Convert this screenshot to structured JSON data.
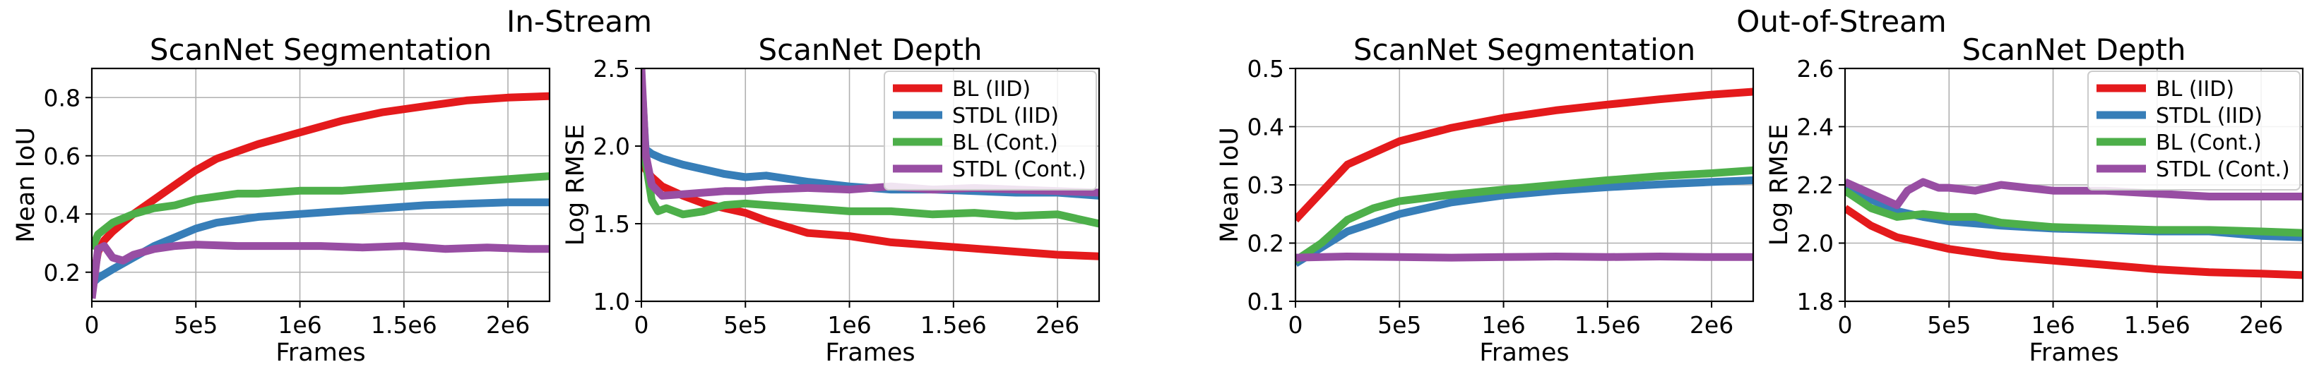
{
  "figure": {
    "group_titles": [
      "In-Stream",
      "Out-of-Stream"
    ]
  },
  "colors": {
    "BL (IID)": "#e41a1c",
    "STDL (IID)": "#377eb8",
    "BL (Cont.)": "#4daf4a",
    "STDL (Cont.)": "#984ea3"
  },
  "chart_data": [
    {
      "type": "line",
      "group": "In-Stream",
      "title": "ScanNet Segmentation",
      "xlabel": "Frames",
      "ylabel": "Mean IoU",
      "xlim": [
        0,
        2200000
      ],
      "ylim": [
        0.1,
        0.9
      ],
      "xticks": [
        0,
        500000,
        1000000,
        1500000,
        2000000
      ],
      "xtick_labels": [
        "0",
        "5e5",
        "1e6",
        "1.5e6",
        "2e6"
      ],
      "yticks": [
        0.2,
        0.4,
        0.6,
        0.8
      ],
      "ytick_labels": [
        "0.2",
        "0.4",
        "0.6",
        "0.8"
      ],
      "grid": true,
      "legend": null,
      "series": [
        {
          "name": "BL (IID)",
          "x": [
            0,
            30000,
            60000,
            100000,
            150000,
            200000,
            300000,
            400000,
            500000,
            600000,
            800000,
            1000000,
            1200000,
            1400000,
            1600000,
            1800000,
            2000000,
            2200000
          ],
          "y": [
            0.15,
            0.27,
            0.31,
            0.34,
            0.37,
            0.4,
            0.45,
            0.5,
            0.55,
            0.59,
            0.64,
            0.68,
            0.72,
            0.75,
            0.77,
            0.79,
            0.8,
            0.805
          ]
        },
        {
          "name": "STDL (IID)",
          "x": [
            0,
            30000,
            100000,
            200000,
            300000,
            400000,
            500000,
            600000,
            700000,
            800000,
            1000000,
            1200000,
            1400000,
            1600000,
            1800000,
            2000000,
            2200000
          ],
          "y": [
            0.16,
            0.18,
            0.21,
            0.25,
            0.29,
            0.32,
            0.35,
            0.37,
            0.38,
            0.39,
            0.4,
            0.41,
            0.42,
            0.43,
            0.435,
            0.44,
            0.44
          ]
        },
        {
          "name": "BL (Cont.)",
          "x": [
            0,
            30000,
            100000,
            200000,
            300000,
            400000,
            500000,
            600000,
            700000,
            800000,
            1000000,
            1200000,
            1400000,
            1600000,
            1800000,
            2000000,
            2200000
          ],
          "y": [
            0.28,
            0.33,
            0.37,
            0.4,
            0.42,
            0.43,
            0.45,
            0.46,
            0.47,
            0.47,
            0.48,
            0.48,
            0.49,
            0.5,
            0.51,
            0.52,
            0.53
          ]
        },
        {
          "name": "STDL (Cont.)",
          "x": [
            0,
            30000,
            60000,
            100000,
            150000,
            200000,
            300000,
            400000,
            500000,
            700000,
            900000,
            1100000,
            1300000,
            1500000,
            1700000,
            1900000,
            2100000,
            2200000
          ],
          "y": [
            0.11,
            0.28,
            0.29,
            0.25,
            0.24,
            0.26,
            0.28,
            0.29,
            0.295,
            0.29,
            0.29,
            0.29,
            0.285,
            0.29,
            0.28,
            0.285,
            0.28,
            0.28
          ]
        }
      ]
    },
    {
      "type": "line",
      "group": "In-Stream",
      "title": "ScanNet Depth",
      "xlabel": "Frames",
      "ylabel": "Log RMSE",
      "xlim": [
        0,
        2200000
      ],
      "ylim": [
        1.0,
        2.5
      ],
      "xticks": [
        0,
        500000,
        1000000,
        1500000,
        2000000
      ],
      "xtick_labels": [
        "0",
        "5e5",
        "1e6",
        "1.5e6",
        "2e6"
      ],
      "yticks": [
        1.0,
        1.5,
        2.0,
        2.5
      ],
      "ytick_labels": [
        "1.0",
        "1.5",
        "2.0",
        "2.5"
      ],
      "grid": true,
      "legend": "top-right",
      "series": [
        {
          "name": "BL (IID)",
          "x": [
            0,
            20000,
            50000,
            100000,
            200000,
            300000,
            400000,
            500000,
            600000,
            700000,
            800000,
            1000000,
            1200000,
            1400000,
            1600000,
            1800000,
            2000000,
            2200000
          ],
          "y": [
            2.3,
            1.85,
            1.8,
            1.74,
            1.68,
            1.63,
            1.6,
            1.57,
            1.52,
            1.48,
            1.44,
            1.42,
            1.38,
            1.36,
            1.34,
            1.32,
            1.3,
            1.29
          ]
        },
        {
          "name": "STDL (IID)",
          "x": [
            0,
            20000,
            50000,
            100000,
            200000,
            300000,
            400000,
            500000,
            600000,
            800000,
            1000000,
            1200000,
            1400000,
            1600000,
            1800000,
            2000000,
            2200000
          ],
          "y": [
            2.45,
            1.98,
            1.95,
            1.92,
            1.88,
            1.85,
            1.82,
            1.8,
            1.81,
            1.77,
            1.74,
            1.72,
            1.72,
            1.71,
            1.7,
            1.7,
            1.68
          ]
        },
        {
          "name": "BL (Cont.)",
          "x": [
            0,
            20000,
            50000,
            80000,
            120000,
            200000,
            300000,
            400000,
            500000,
            600000,
            800000,
            1000000,
            1200000,
            1400000,
            1600000,
            1800000,
            2000000,
            2200000
          ],
          "y": [
            2.1,
            1.9,
            1.65,
            1.58,
            1.6,
            1.56,
            1.58,
            1.62,
            1.63,
            1.62,
            1.6,
            1.58,
            1.58,
            1.56,
            1.57,
            1.55,
            1.56,
            1.5
          ]
        },
        {
          "name": "STDL (Cont.)",
          "x": [
            0,
            20000,
            50000,
            100000,
            200000,
            300000,
            400000,
            500000,
            600000,
            800000,
            1000000,
            1200000,
            1400000,
            1600000,
            1800000,
            2000000,
            2200000
          ],
          "y": [
            2.5,
            1.95,
            1.75,
            1.68,
            1.69,
            1.7,
            1.71,
            1.71,
            1.72,
            1.73,
            1.72,
            1.74,
            1.72,
            1.73,
            1.72,
            1.71,
            1.7
          ]
        }
      ]
    },
    {
      "type": "line",
      "group": "Out-of-Stream",
      "title": "ScanNet Segmentation",
      "xlabel": "Frames",
      "ylabel": "Mean IoU",
      "xlim": [
        0,
        2200000
      ],
      "ylim": [
        0.1,
        0.5
      ],
      "xticks": [
        0,
        500000,
        1000000,
        1500000,
        2000000
      ],
      "xtick_labels": [
        "0",
        "5e5",
        "1e6",
        "1.5e6",
        "2e6"
      ],
      "yticks": [
        0.1,
        0.2,
        0.3,
        0.4,
        0.5
      ],
      "ytick_labels": [
        "0.1",
        "0.2",
        "0.3",
        "0.4",
        "0.5"
      ],
      "grid": true,
      "legend": null,
      "series": [
        {
          "name": "BL (IID)",
          "x": [
            0,
            250000,
            500000,
            750000,
            1000000,
            1250000,
            1500000,
            1750000,
            2000000,
            2200000
          ],
          "y": [
            0.24,
            0.335,
            0.375,
            0.398,
            0.415,
            0.428,
            0.438,
            0.447,
            0.455,
            0.46
          ]
        },
        {
          "name": "STDL (IID)",
          "x": [
            0,
            250000,
            500000,
            750000,
            1000000,
            1250000,
            1500000,
            1750000,
            2000000,
            2200000
          ],
          "y": [
            0.165,
            0.22,
            0.25,
            0.27,
            0.282,
            0.29,
            0.296,
            0.301,
            0.305,
            0.308
          ]
        },
        {
          "name": "BL (Cont.)",
          "x": [
            0,
            125000,
            250000,
            375000,
            500000,
            750000,
            1000000,
            1250000,
            1500000,
            1750000,
            2000000,
            2200000
          ],
          "y": [
            0.17,
            0.2,
            0.24,
            0.26,
            0.272,
            0.283,
            0.292,
            0.3,
            0.308,
            0.315,
            0.32,
            0.325
          ]
        },
        {
          "name": "STDL (Cont.)",
          "x": [
            0,
            250000,
            500000,
            750000,
            1000000,
            1250000,
            1500000,
            1750000,
            2000000,
            2200000
          ],
          "y": [
            0.175,
            0.177,
            0.176,
            0.175,
            0.176,
            0.177,
            0.176,
            0.177,
            0.176,
            0.176
          ]
        }
      ]
    },
    {
      "type": "line",
      "group": "Out-of-Stream",
      "title": "ScanNet Depth",
      "xlabel": "Frames",
      "ylabel": "Log RMSE",
      "xlim": [
        0,
        2200000
      ],
      "ylim": [
        1.8,
        2.6
      ],
      "xticks": [
        0,
        500000,
        1000000,
        1500000,
        2000000
      ],
      "xtick_labels": [
        "0",
        "5e5",
        "1e6",
        "1.5e6",
        "2e6"
      ],
      "yticks": [
        1.8,
        2.0,
        2.2,
        2.4,
        2.6
      ],
      "ytick_labels": [
        "1.8",
        "2.0",
        "2.2",
        "2.4",
        "2.6"
      ],
      "grid": true,
      "legend": "top-right",
      "series": [
        {
          "name": "BL (IID)",
          "x": [
            0,
            125000,
            250000,
            375000,
            500000,
            750000,
            1000000,
            1250000,
            1500000,
            1750000,
            2000000,
            2200000
          ],
          "y": [
            2.12,
            2.06,
            2.02,
            2.0,
            1.98,
            1.955,
            1.94,
            1.925,
            1.91,
            1.9,
            1.895,
            1.89
          ]
        },
        {
          "name": "STDL (IID)",
          "x": [
            0,
            125000,
            250000,
            375000,
            500000,
            750000,
            1000000,
            1250000,
            1500000,
            1750000,
            2000000,
            2200000
          ],
          "y": [
            2.2,
            2.15,
            2.11,
            2.09,
            2.075,
            2.06,
            2.05,
            2.045,
            2.04,
            2.04,
            2.025,
            2.02
          ]
        },
        {
          "name": "BL (Cont.)",
          "x": [
            0,
            125000,
            250000,
            375000,
            500000,
            625000,
            750000,
            1000000,
            1250000,
            1500000,
            1750000,
            2000000,
            2200000
          ],
          "y": [
            2.18,
            2.12,
            2.09,
            2.1,
            2.09,
            2.09,
            2.07,
            2.055,
            2.05,
            2.045,
            2.045,
            2.04,
            2.035
          ]
        },
        {
          "name": "STDL (Cont.)",
          "x": [
            0,
            125000,
            250000,
            300000,
            375000,
            450000,
            500000,
            625000,
            750000,
            875000,
            1000000,
            1250000,
            1500000,
            1750000,
            2000000,
            2200000
          ],
          "y": [
            2.21,
            2.17,
            2.13,
            2.18,
            2.21,
            2.19,
            2.19,
            2.18,
            2.2,
            2.19,
            2.18,
            2.18,
            2.17,
            2.16,
            2.16,
            2.16
          ]
        }
      ]
    }
  ]
}
